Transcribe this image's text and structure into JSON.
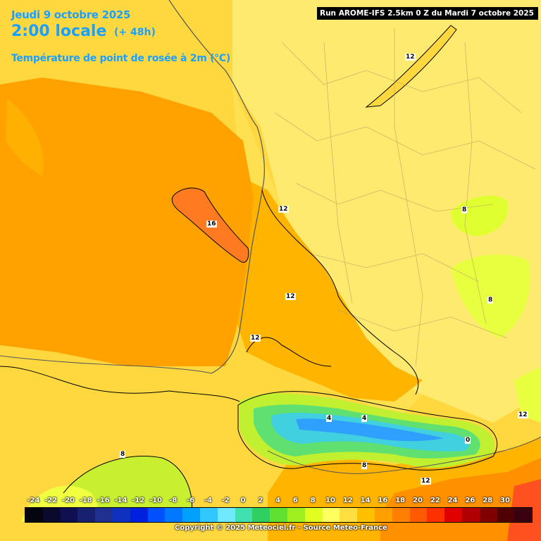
{
  "title": {
    "date": "Jeudi 9 octobre 2025",
    "time": "2:00 locale",
    "offset": "(+ 48h)",
    "variable": "Température de point de rosée à 2m (°C)"
  },
  "run_info": "Run AROME-IFS 2.5km 0 Z du Mardi 7 octobre 2025",
  "copyright": "Copyright © 2025 Meteociel.fr - Source Meteo-France",
  "contour_labels": [
    "12",
    "12",
    "16",
    "12",
    "12",
    "8",
    "8",
    "12",
    "4",
    "4",
    "0",
    "8",
    "12",
    "8"
  ],
  "colorbar": {
    "ticks": [
      "-24",
      "-22",
      "-20",
      "-18",
      "-16",
      "-14",
      "-12",
      "-10",
      "-8",
      "-6",
      "-4",
      "-2",
      "0",
      "2",
      "4",
      "6",
      "8",
      "10",
      "12",
      "14",
      "16",
      "18",
      "20",
      "22",
      "24",
      "26",
      "28",
      "30"
    ],
    "colors": [
      "#050510",
      "#0a0a2e",
      "#101050",
      "#182070",
      "#203090",
      "#1030c0",
      "#0020e0",
      "#0050ff",
      "#0078ff",
      "#00a0ff",
      "#30c8ff",
      "#70e8ff",
      "#40e0b0",
      "#30d060",
      "#60e030",
      "#a0f020",
      "#e0ff20",
      "#ffff60",
      "#ffe040",
      "#ffc000",
      "#ffa000",
      "#ff8000",
      "#ff5a00",
      "#ff3000",
      "#e00000",
      "#b00000",
      "#800000",
      "#500000",
      "#380010"
    ]
  }
}
